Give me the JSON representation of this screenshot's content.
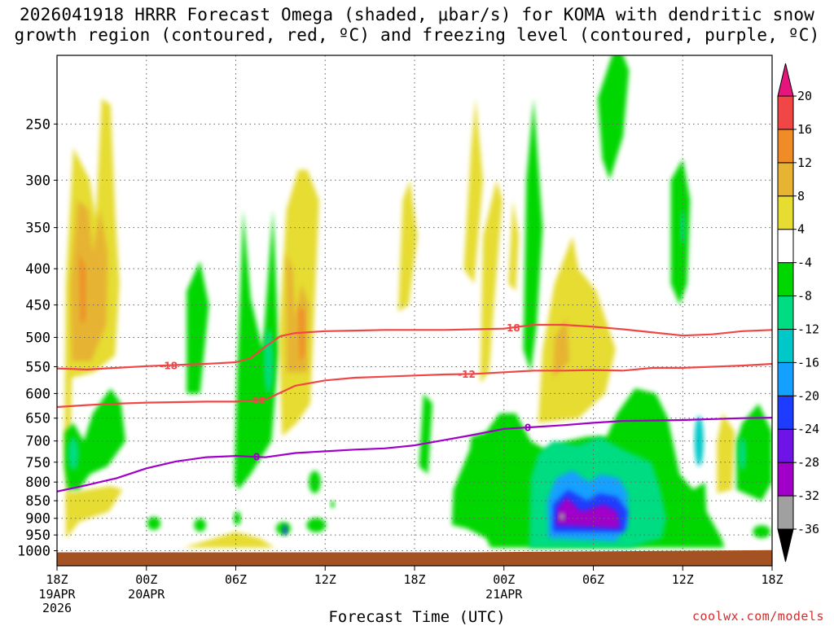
{
  "title": {
    "line1": "2026041918 HRRR Forecast Omega (shaded, μbar/s) for KOMA with dendritic snow",
    "line2": "growth region (contoured, red, ºC) and freezing level (contoured, purple, ºC)"
  },
  "credit": "coolwx.com/models",
  "chart_data": {
    "type": "heatmap",
    "title": "2026041918 HRRR Forecast Omega (shaded, μbar/s) for KOMA with dendritic snow growth region (contoured, red, ºC) and freezing level (contoured, purple, ºC)",
    "xlabel": "Forecast Time (UTC)",
    "ylabel": "",
    "x_unit": "hours from 2026-04-19 18Z",
    "xlim": [
      0,
      48
    ],
    "ylim_hpa": [
      1050,
      200
    ],
    "y_ticks": [
      250,
      300,
      350,
      400,
      450,
      500,
      550,
      600,
      650,
      700,
      750,
      800,
      850,
      900,
      950,
      1000
    ],
    "x_ticks": [
      {
        "hour": 0,
        "label": "18Z",
        "sub1": "19APR",
        "sub2": "2026"
      },
      {
        "hour": 6,
        "label": "00Z",
        "sub1": "20APR",
        "sub2": ""
      },
      {
        "hour": 12,
        "label": "06Z",
        "sub1": "",
        "sub2": ""
      },
      {
        "hour": 18,
        "label": "12Z",
        "sub1": "",
        "sub2": ""
      },
      {
        "hour": 24,
        "label": "18Z",
        "sub1": "",
        "sub2": ""
      },
      {
        "hour": 30,
        "label": "00Z",
        "sub1": "21APR",
        "sub2": ""
      },
      {
        "hour": 36,
        "label": "06Z",
        "sub1": "",
        "sub2": ""
      },
      {
        "hour": 42,
        "label": "12Z",
        "sub1": "",
        "sub2": ""
      },
      {
        "hour": 48,
        "label": "18Z",
        "sub1": "",
        "sub2": ""
      }
    ],
    "colorbar": {
      "levels": [
        "-36",
        "-32",
        "-28",
        "-24",
        "-20",
        "-16",
        "-12",
        "-8",
        "-4",
        "4",
        "8",
        "12",
        "16",
        "20"
      ],
      "colors": [
        "#000000",
        "#a0a0a0",
        "#a000c8",
        "#6e14e6",
        "#1e3cff",
        "#14a0ff",
        "#00c8c8",
        "#00dc82",
        "#00d700",
        "#ffffff",
        "#e6dc32",
        "#e6b432",
        "#f08c28",
        "#f04646",
        "#e6147d"
      ]
    },
    "omega_cells": [
      {
        "name": "ascent-core",
        "value": -34,
        "t0": 28.5,
        "t1": 39.5,
        "p0": 620,
        "p1": 960
      },
      {
        "name": "ascent-mid",
        "value": -26,
        "t0": 33,
        "t1": 38.5,
        "p0": 780,
        "p1": 950
      },
      {
        "name": "descent-early-aloft",
        "value": 6,
        "t0": 1,
        "t1": 4,
        "p0": 270,
        "p1": 560
      },
      {
        "name": "descent-1630",
        "value": 5,
        "t0": 15,
        "t1": 17,
        "p0": 280,
        "p1": 660
      },
      {
        "name": "descent-20z",
        "value": 6,
        "t0": 34.5,
        "t1": 37.5,
        "p0": 420,
        "p1": 630
      }
    ],
    "series": [
      {
        "name": "-18",
        "color": "#f04646",
        "label_hour": 7.5,
        "x": [
          0,
          2,
          4,
          6,
          8,
          10,
          12,
          13,
          14,
          15,
          16,
          18,
          20,
          22,
          24,
          26,
          28,
          30,
          32,
          34,
          36,
          38,
          40,
          42,
          44,
          46,
          48
        ],
        "y": [
          553,
          555,
          552,
          549,
          547,
          545,
          542,
          535,
          515,
          498,
          493,
          490,
          489,
          488,
          488,
          488,
          487,
          486,
          480,
          480,
          483,
          487,
          492,
          497,
          495,
          490,
          488
        ]
      },
      {
        "name": "-12",
        "color": "#f04646",
        "label_hour": 13.4,
        "x": [
          0,
          2,
          4,
          6,
          8,
          10,
          12,
          14,
          16,
          18,
          20,
          22,
          24,
          26,
          28,
          30,
          32,
          34,
          36,
          38,
          40,
          42,
          44,
          46,
          48
        ],
        "y": [
          627,
          623,
          620,
          618,
          617,
          616,
          616,
          612,
          585,
          575,
          570,
          568,
          566,
          564,
          563,
          560,
          557,
          557,
          556,
          557,
          552,
          552,
          550,
          548,
          545
        ]
      },
      {
        "name": "0",
        "color": "#a000c8",
        "label_hour": 13.4,
        "x": [
          0,
          2,
          4,
          6,
          8,
          10,
          12,
          14,
          16,
          18,
          20,
          22,
          24,
          26,
          28,
          30,
          32,
          34,
          36,
          38,
          40,
          42,
          44,
          46,
          48
        ],
        "y": [
          825,
          808,
          790,
          765,
          748,
          738,
          735,
          738,
          728,
          724,
          720,
          717,
          710,
          698,
          686,
          673,
          669,
          665,
          660,
          656,
          655,
          654,
          652,
          650,
          649
        ]
      }
    ]
  }
}
